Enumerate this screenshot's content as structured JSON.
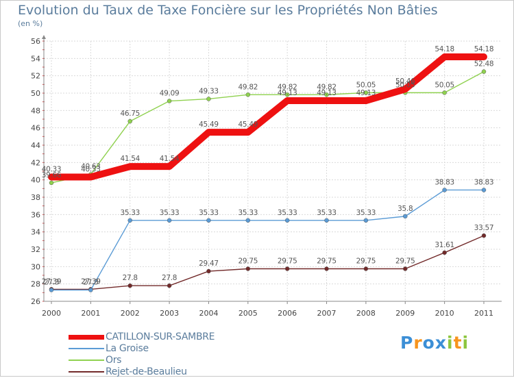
{
  "chart_data": {
    "type": "line",
    "title": "Evolution du Taux de Taxe Foncière sur les Propriétés Non Bâties",
    "ylabel": "(en %)",
    "xlabel": "",
    "categories": [
      "2000",
      "2001",
      "2002",
      "2003",
      "2004",
      "2005",
      "2006",
      "2007",
      "2008",
      "2009",
      "2010",
      "2011"
    ],
    "ylim": [
      26,
      56
    ],
    "yticks": [
      26,
      28,
      30,
      32,
      34,
      36,
      38,
      40,
      42,
      44,
      46,
      48,
      50,
      52,
      54,
      56
    ],
    "grid": true,
    "legend_position": "bottom-left",
    "series": [
      {
        "name": "Rejet-de-Beaulieu",
        "color": "#722a2a",
        "values": [
          27.39,
          27.39,
          27.8,
          27.8,
          29.47,
          29.75,
          29.75,
          29.75,
          29.75,
          29.75,
          31.61,
          33.57
        ],
        "labels": [
          "27.39",
          "27.39",
          "27.8",
          "27.8",
          "29.47",
          "29.75",
          "29.75",
          "29.75",
          "29.75",
          "29.75",
          "31.61",
          "33.57"
        ]
      },
      {
        "name": "La Groise",
        "color": "#5b9bd5",
        "values": [
          27.3,
          27.3,
          35.33,
          35.33,
          35.33,
          35.33,
          35.33,
          35.33,
          35.33,
          35.8,
          38.83,
          38.83
        ],
        "labels": [
          "27.3",
          "27.3",
          "35.33",
          "35.33",
          "35.33",
          "35.33",
          "35.33",
          "35.33",
          "35.33",
          "35.8",
          "38.83",
          "38.83"
        ]
      },
      {
        "name": "Ors",
        "color": "#8fd14f",
        "values": [
          39.66,
          40.63,
          46.75,
          49.09,
          49.33,
          49.82,
          49.82,
          49.82,
          50.05,
          50.05,
          50.05,
          52.48
        ],
        "labels": [
          "39.66",
          "40.63",
          "46.75",
          "49.09",
          "49.33",
          "49.82",
          "49.82",
          "49.82",
          "50.05",
          "50.05",
          "50.05",
          "52.48"
        ]
      },
      {
        "name": "CATILLON-SUR-SAMBRE",
        "color": "#ee1111",
        "values": [
          40.33,
          40.33,
          41.54,
          41.54,
          45.49,
          45.49,
          49.13,
          49.13,
          49.13,
          50.46,
          54.18,
          54.18
        ],
        "labels": [
          "40.33",
          "40.33",
          "41.54",
          "41.54",
          "45.49",
          "45.49",
          "49.13",
          "49.13",
          "49.13",
          "50.46",
          "54.18",
          "54.18"
        ]
      }
    ]
  },
  "legend": {
    "items": [
      {
        "label": "CATILLON-SUR-SAMBRE",
        "color": "#ee1111"
      },
      {
        "label": "La Groise",
        "color": "#5b9bd5"
      },
      {
        "label": "Ors",
        "color": "#8fd14f"
      },
      {
        "label": "Rejet-de-Beaulieu",
        "color": "#722a2a"
      }
    ]
  },
  "logo": {
    "letters": [
      "P",
      "r",
      "o",
      "x",
      "i",
      "t",
      "i"
    ],
    "colors": [
      "#3c8fd6",
      "#f7941d",
      "#3c8fd6",
      "#3c8fd6",
      "#8dc63f",
      "#f7941d",
      "#8dc63f"
    ]
  }
}
